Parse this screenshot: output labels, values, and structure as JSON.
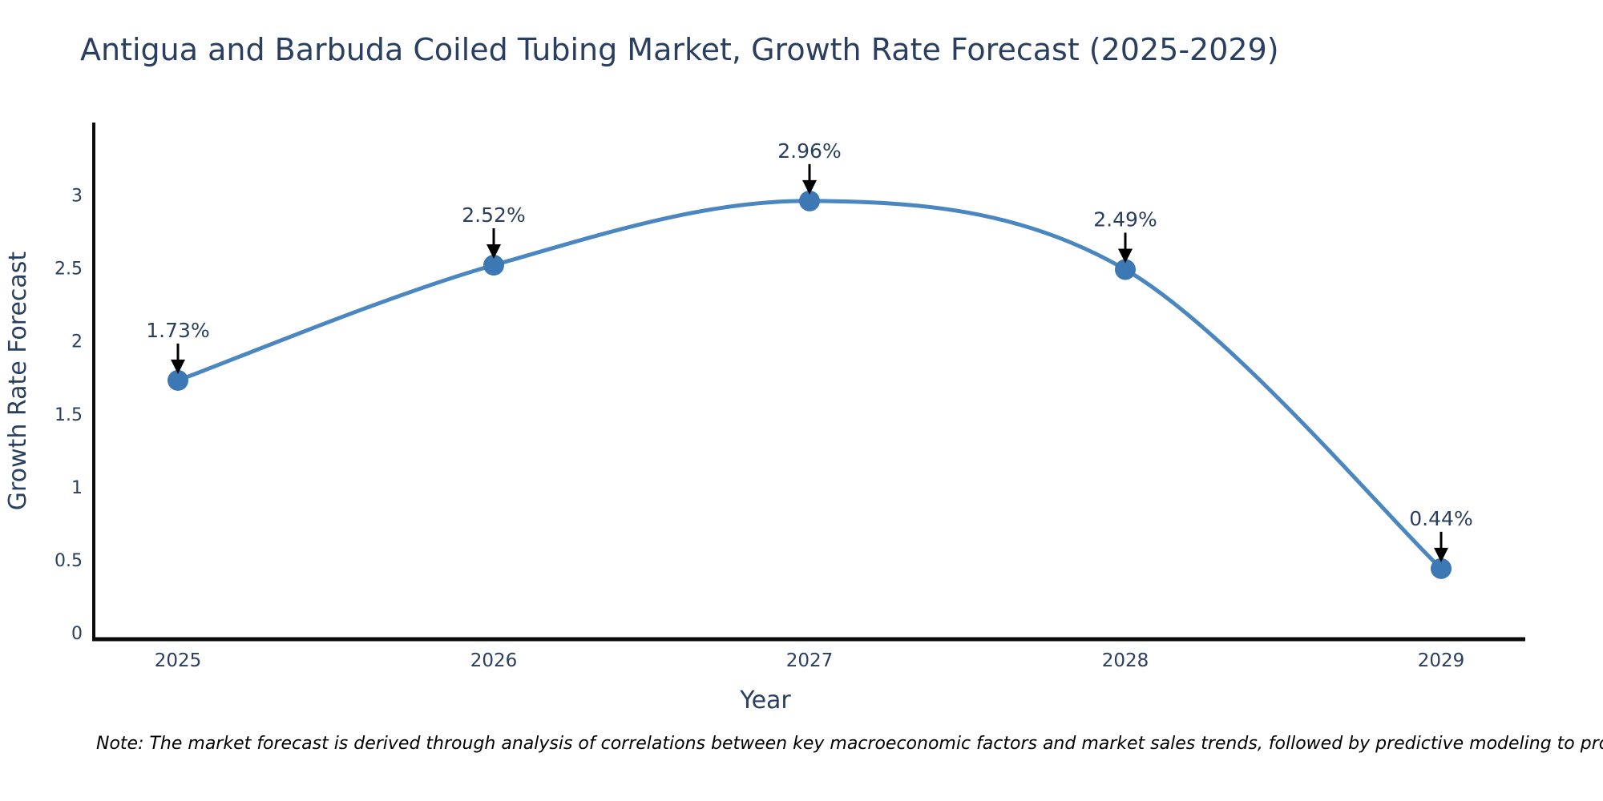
{
  "title": "Antigua and Barbuda Coiled Tubing Market, Growth Rate Forecast (2025-2029)",
  "note": "Note: The market forecast is derived through analysis of correlations between key macroeconomic factors and market sales trends, followed by predictive modeling to project future sales",
  "chart_data": {
    "type": "line",
    "title": "Antigua and Barbuda Coiled Tubing Market, Growth Rate Forecast (2025-2029)",
    "x": [
      2025,
      2026,
      2027,
      2028,
      2029
    ],
    "series": [
      {
        "name": "Growth Rate Forecast",
        "values": [
          1.73,
          2.52,
          2.96,
          2.49,
          0.44
        ]
      }
    ],
    "point_labels": [
      "1.73%",
      "2.52%",
      "2.96%",
      "2.49%",
      "0.44%"
    ],
    "xlabel": "Year",
    "ylabel": "Growth Rate Forecast",
    "xticks": [
      "2025",
      "2026",
      "2027",
      "2028",
      "2029"
    ],
    "yticks": [
      0,
      0.5,
      1,
      1.5,
      2,
      2.5,
      3
    ],
    "ylim": [
      0,
      3.55
    ],
    "grid": false,
    "legend": "none",
    "line_shape": "spline",
    "annotations": "value labels with down arrows above each point",
    "colors": {
      "line": "#4a86c0",
      "marker": "#3c78b4",
      "arrow": "#000000",
      "axis_line": "#0a0a0a",
      "text": "#2a3f5f",
      "note_text": "#000000",
      "background": "#ffffff"
    }
  }
}
